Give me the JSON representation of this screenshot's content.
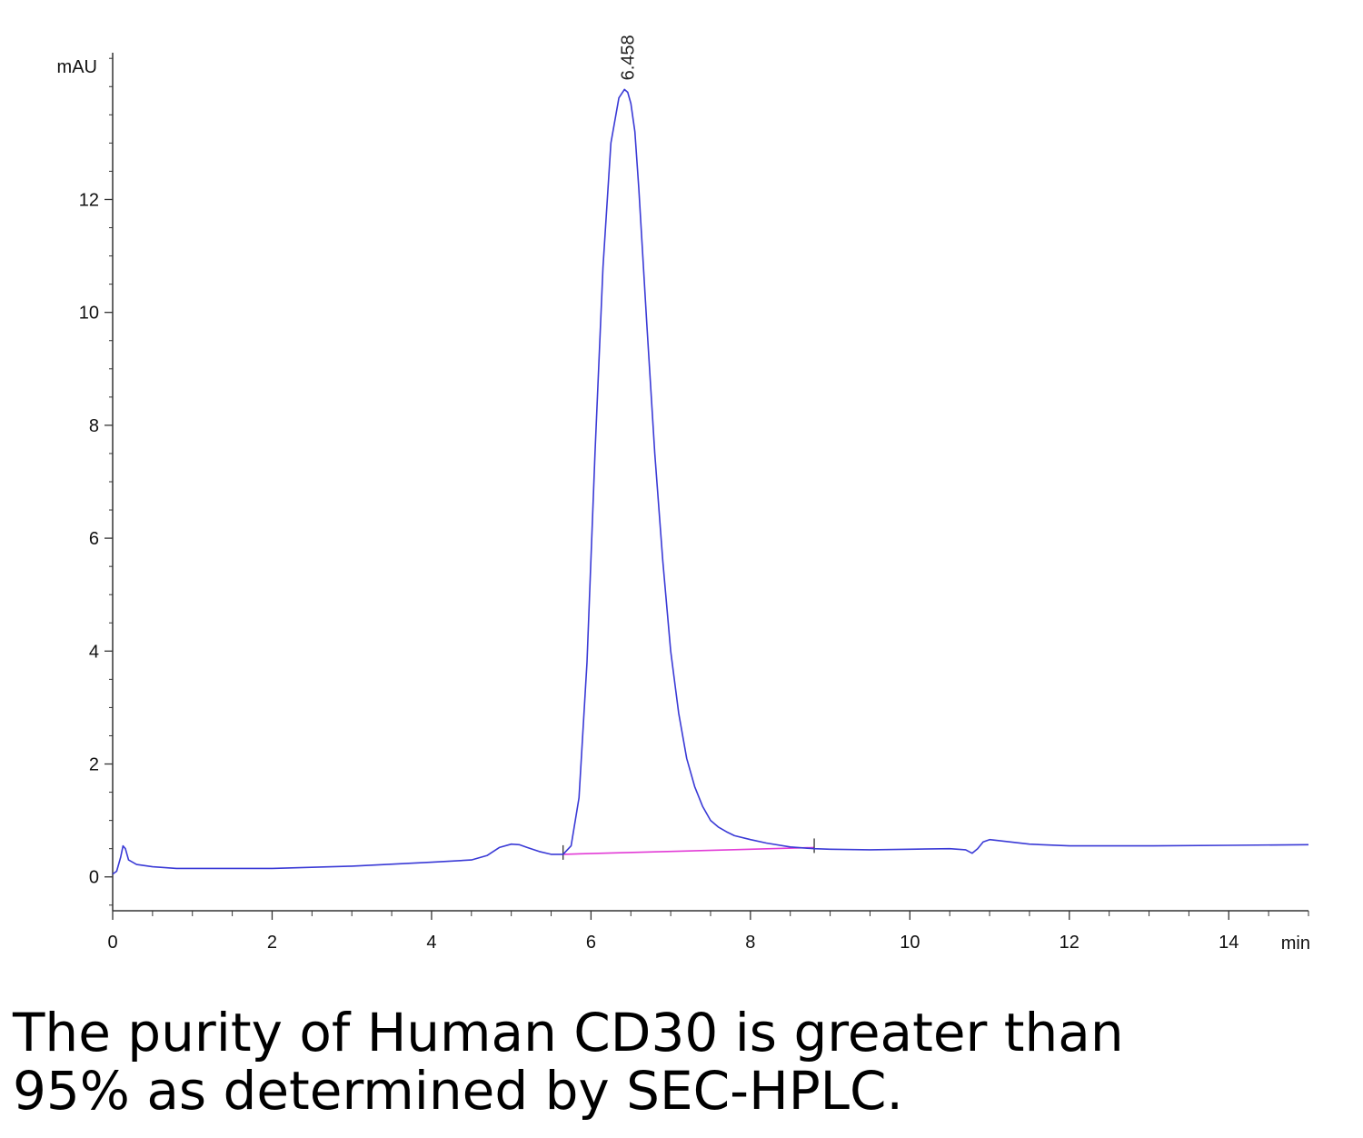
{
  "chart_data": {
    "type": "line",
    "title": "",
    "xlabel": "min",
    "ylabel": "mAU",
    "xlim": [
      0,
      15
    ],
    "ylim": [
      -0.6,
      14.6
    ],
    "x_ticks_major": [
      0,
      2,
      4,
      6,
      8,
      10,
      12,
      14
    ],
    "x_ticks_minor_step": 0.5,
    "y_ticks_major": [
      0,
      2,
      4,
      6,
      8,
      10,
      12
    ],
    "y_ticks_minor_step": 0.5,
    "grid": false,
    "series": [
      {
        "name": "",
        "color": "#3a3ad6",
        "x": [
          0.0,
          0.05,
          0.1,
          0.13,
          0.16,
          0.2,
          0.3,
          0.5,
          0.8,
          1.0,
          2.0,
          3.0,
          4.0,
          4.5,
          4.7,
          4.85,
          5.0,
          5.1,
          5.2,
          5.35,
          5.5,
          5.65,
          5.75,
          5.85,
          5.95,
          6.05,
          6.15,
          6.25,
          6.35,
          6.42,
          6.46,
          6.5,
          6.55,
          6.6,
          6.7,
          6.8,
          6.9,
          7.0,
          7.1,
          7.2,
          7.3,
          7.4,
          7.5,
          7.6,
          7.7,
          7.8,
          8.0,
          8.2,
          8.5,
          8.8,
          9.0,
          9.5,
          10.0,
          10.5,
          10.7,
          10.78,
          10.85,
          10.92,
          11.0,
          11.5,
          12.0,
          13.0,
          14.0,
          15.0
        ],
        "y": [
          0.05,
          0.1,
          0.35,
          0.55,
          0.5,
          0.3,
          0.22,
          0.18,
          0.15,
          0.15,
          0.15,
          0.19,
          0.26,
          0.3,
          0.38,
          0.52,
          0.58,
          0.57,
          0.52,
          0.45,
          0.4,
          0.4,
          0.55,
          1.4,
          3.8,
          7.5,
          10.8,
          13.0,
          13.8,
          13.95,
          13.9,
          13.7,
          13.2,
          12.2,
          9.8,
          7.5,
          5.6,
          4.0,
          2.9,
          2.1,
          1.6,
          1.25,
          1.0,
          0.88,
          0.8,
          0.73,
          0.66,
          0.6,
          0.53,
          0.5,
          0.49,
          0.48,
          0.49,
          0.5,
          0.48,
          0.42,
          0.5,
          0.62,
          0.66,
          0.58,
          0.55,
          0.55,
          0.56,
          0.57
        ]
      }
    ],
    "baseline": {
      "color": "#e23bd6",
      "x": [
        5.65,
        8.8
      ],
      "y": [
        0.4,
        0.52
      ],
      "markers_x": [
        5.65,
        8.8
      ]
    },
    "annotations": [
      {
        "label": "6.458",
        "x": 6.458,
        "y": 13.95
      }
    ]
  },
  "caption": {
    "line1": "The purity of Human CD30 is greater than",
    "line2": "95% as determined by SEC-HPLC."
  }
}
